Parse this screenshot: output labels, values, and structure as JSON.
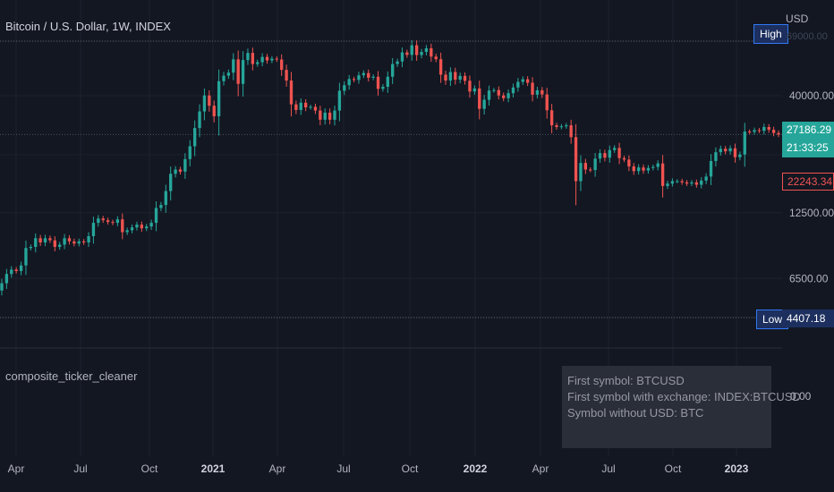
{
  "chart_title": "Bitcoin / U.S. Dollar, 1W, INDEX",
  "indicator_name": "composite_ticker_cleaner",
  "currency_label": "USD",
  "info_panel": {
    "lines": [
      "First symbol: BTCUSD",
      "First symbol with exchange: INDEX:BTCUSD",
      "Symbol without USD: BTC"
    ]
  },
  "price_tags": {
    "high_label": "High",
    "low_label": "Low",
    "low_value": "4407.18",
    "current_price": "27186.29",
    "countdown": "21:33:25",
    "prev_price": "22243.34"
  },
  "colors": {
    "background": "#131722",
    "up": "#26a69a",
    "down": "#ef5350",
    "grid": "#1e222d",
    "text": "#b2b5be",
    "high_low_bg": "#1c2f5e",
    "info_bg": "#2a2e39"
  },
  "chart_data": {
    "type": "candlestick",
    "y_scale": "log",
    "y_axis_ticks": [
      40000,
      12500,
      6500
    ],
    "y_axis_tick_labels": [
      "40000.00",
      "12500.00",
      "6500.00"
    ],
    "indicator_axis_tick": "0.00",
    "x_axis_labels": [
      {
        "label": "Apr",
        "bold": false
      },
      {
        "label": "Jul",
        "bold": false
      },
      {
        "label": "Oct",
        "bold": false
      },
      {
        "label": "2021",
        "bold": true
      },
      {
        "label": "Apr",
        "bold": false
      },
      {
        "label": "Jul",
        "bold": false
      },
      {
        "label": "Oct",
        "bold": false
      },
      {
        "label": "2022",
        "bold": true
      },
      {
        "label": "Apr",
        "bold": false
      },
      {
        "label": "Jul",
        "bold": false
      },
      {
        "label": "Oct",
        "bold": false
      },
      {
        "label": "2023",
        "bold": true
      }
    ],
    "high": 68789,
    "low": 4407.18,
    "current": 27186.29,
    "prev_close": 22243.34,
    "weekly_close": [
      6200,
      6800,
      7100,
      7000,
      7400,
      8800,
      8900,
      9700,
      9300,
      9700,
      9500,
      8900,
      9100,
      9700,
      9400,
      9200,
      9400,
      9300,
      9900,
      11300,
      11800,
      11600,
      11400,
      11300,
      11700,
      10300,
      10500,
      10800,
      11100,
      10700,
      10900,
      11300,
      13100,
      13500,
      15500,
      18400,
      19200,
      18800,
      21300,
      24200,
      29000,
      34200,
      40100,
      36200,
      32600,
      46200,
      48800,
      50300,
      57400,
      45000,
      57000,
      61200,
      54800,
      55800,
      58800,
      56800,
      57800,
      57300,
      51700,
      46500,
      36700,
      34700,
      37300,
      35600,
      35800,
      34500,
      31500,
      33800,
      31500,
      34500,
      42000,
      44400,
      47200,
      46800,
      49000,
      50100,
      47800,
      48300,
      42800,
      43700,
      48300,
      54800,
      56200,
      61500,
      60000,
      66000,
      59900,
      61800,
      64100,
      59000,
      57500,
      49300,
      46500,
      50600,
      46900,
      48700,
      46400,
      41700,
      43000,
      35100,
      38400,
      42100,
      42300,
      40100,
      39000,
      41000,
      43400,
      45900,
      47100,
      45500,
      40400,
      42200,
      40500,
      34600,
      29800,
      29300,
      29500,
      29800,
      26500,
      17100,
      20500,
      19200,
      19100,
      21400,
      22600,
      21600,
      23300,
      23800,
      21500,
      21200,
      19800,
      18900,
      19600,
      19000,
      19500,
      19700,
      20400,
      16300,
      16700,
      17100,
      17100,
      16900,
      16700,
      16900,
      16500,
      17200,
      17900,
      20900,
      22800,
      23600,
      23000,
      23700,
      21700,
      22300,
      28000,
      27900,
      28400,
      28200,
      29300,
      28500,
      27600,
      27186.29
    ]
  }
}
